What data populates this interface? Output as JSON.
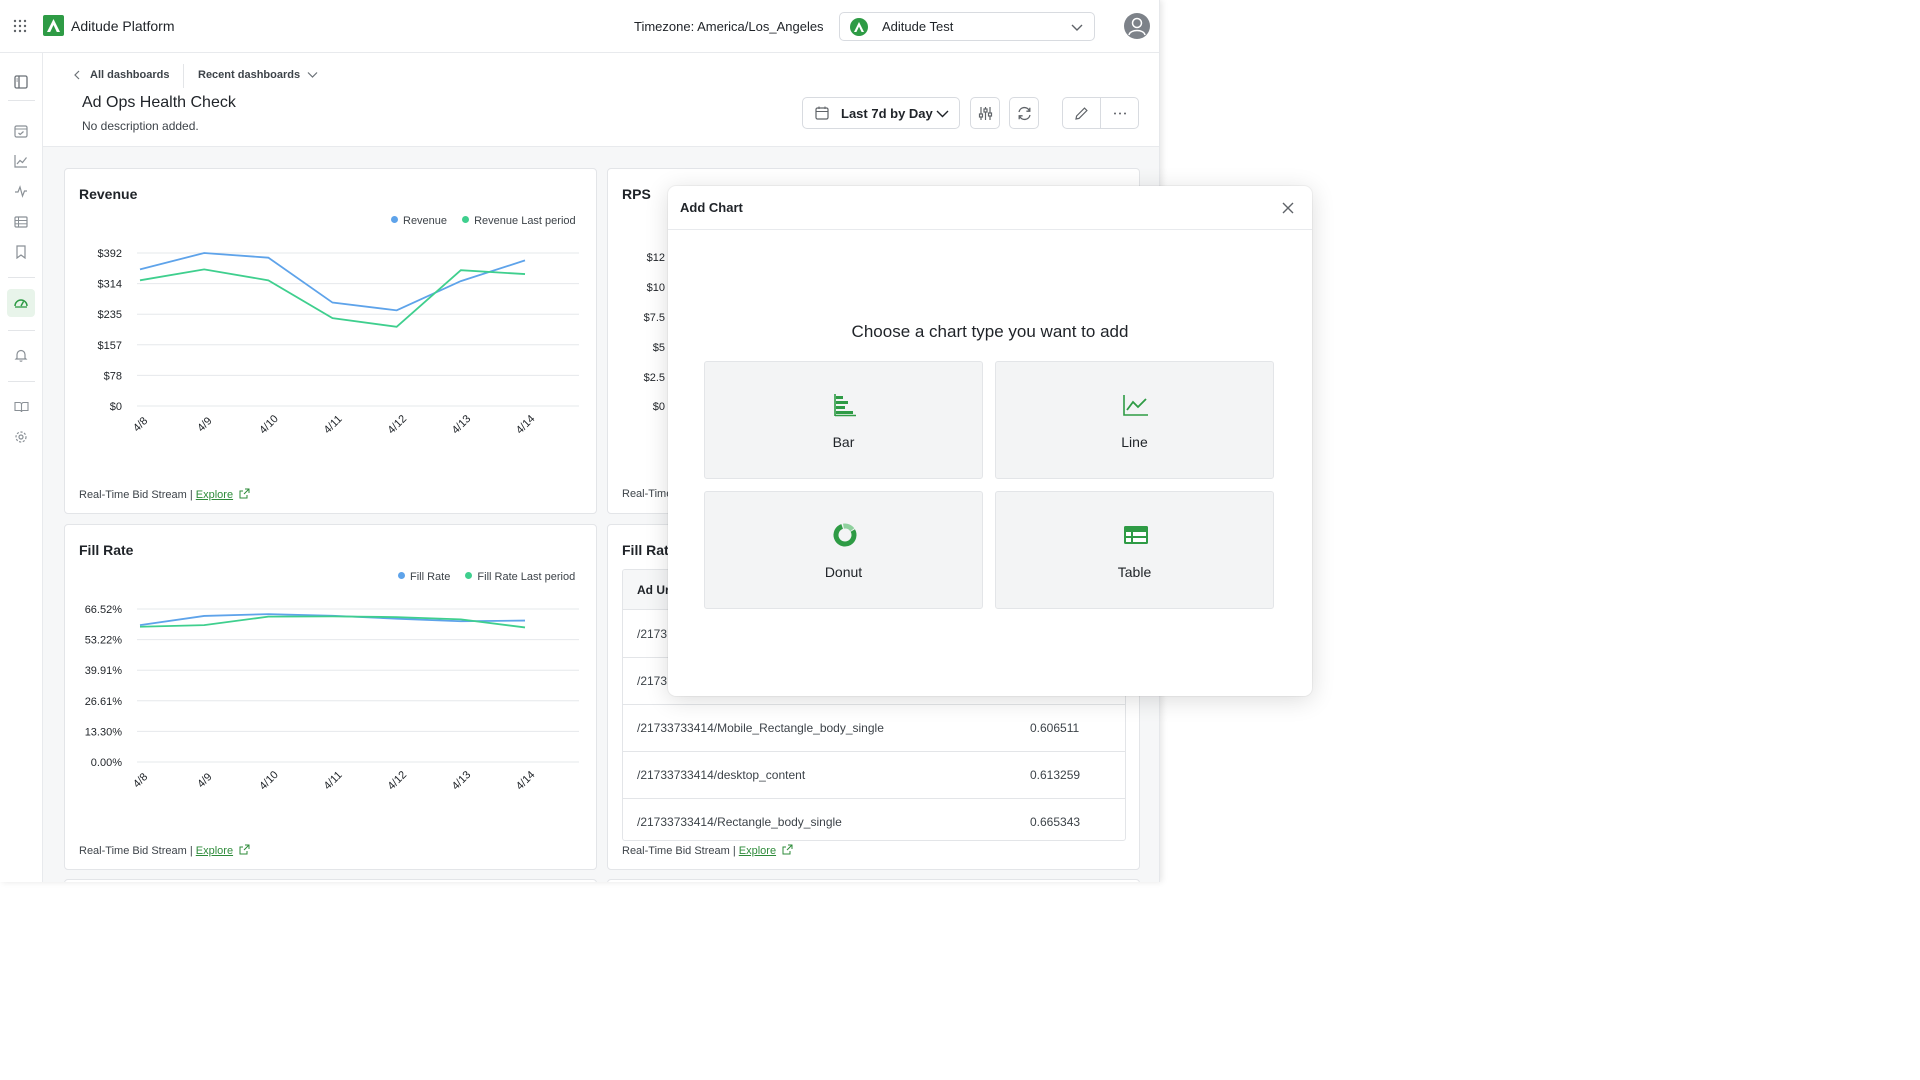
{
  "app": {
    "brand": "Aditude Platform",
    "timezone": "Timezone: America/Los_Angeles",
    "account": "Aditude Test",
    "accent": "#2e9b45"
  },
  "header": {
    "breadcrumb_all": "All dashboards",
    "breadcrumb_recent": "Recent dashboards",
    "title": "Ad Ops Health Check",
    "description": "No description added.",
    "date_range": "Last 7d by Day"
  },
  "revenue_card": {
    "title": "Revenue",
    "legend": [
      "Revenue",
      "Revenue Last period"
    ],
    "footer_source": "Real-Time Bid Stream |",
    "footer_link": "Explore"
  },
  "rps_card": {
    "title": "RPS",
    "yticks": [
      "$12",
      "$10",
      "$7.5",
      "$5",
      "$2.5",
      "$0"
    ],
    "footer_source": "Real-Time"
  },
  "fillrate_card": {
    "title": "Fill Rate",
    "legend": [
      "Fill Rate",
      "Fill Rate Last period"
    ],
    "footer_source": "Real-Time Bid Stream |",
    "footer_link": "Explore"
  },
  "fillrate_table_card": {
    "title": "Fill Rat",
    "column_header": "Ad Ur",
    "rows": [
      {
        "ad_unit": "/2173",
        "value": ""
      },
      {
        "ad_unit": "/2173",
        "value": ""
      },
      {
        "ad_unit": "/21733733414/Mobile_Rectangle_body_single",
        "value": "0.606511"
      },
      {
        "ad_unit": "/21733733414/desktop_content",
        "value": "0.613259"
      },
      {
        "ad_unit": "/21733733414/Rectangle_body_single",
        "value": "0.665343"
      }
    ],
    "footer_source": "Real-Time Bid Stream |",
    "footer_link": "Explore"
  },
  "modal": {
    "title": "Add Chart",
    "prompt": "Choose a chart type you want to add",
    "options": [
      "Bar",
      "Line",
      "Donut",
      "Table"
    ]
  },
  "chart_data": [
    {
      "type": "line",
      "title": "Revenue",
      "categories": [
        "4/8",
        "4/9",
        "4/10",
        "4/11",
        "4/12",
        "4/13",
        "4/14"
      ],
      "yticks": [
        "$392",
        "$314",
        "$235",
        "$157",
        "$78",
        "$0"
      ],
      "ylim": [
        0,
        392
      ],
      "series": [
        {
          "name": "Revenue",
          "color": "#5ea3ea",
          "values": [
            350,
            392,
            380,
            265,
            245,
            320,
            373
          ]
        },
        {
          "name": "Revenue Last period",
          "color": "#3fcf8e",
          "values": [
            322,
            350,
            322,
            225,
            203,
            348,
            338
          ]
        }
      ],
      "legend": "top-right",
      "grid": true
    },
    {
      "type": "line",
      "title": "Fill Rate",
      "categories": [
        "4/8",
        "4/9",
        "4/10",
        "4/11",
        "4/12",
        "4/13",
        "4/14"
      ],
      "yticks": [
        "66.52%",
        "53.22%",
        "39.91%",
        "26.61%",
        "13.30%",
        "0.00%"
      ],
      "ylim": [
        0,
        66.52
      ],
      "series": [
        {
          "name": "Fill Rate",
          "color": "#5ea3ea",
          "values": [
            59.5,
            63.5,
            64.3,
            63.6,
            62.3,
            61.2,
            61.5
          ]
        },
        {
          "name": "Fill Rate Last period",
          "color": "#3fcf8e",
          "values": [
            58.8,
            59.5,
            63.2,
            63.3,
            63.0,
            62.0,
            58.5
          ]
        }
      ],
      "legend": "top-right",
      "grid": true
    }
  ]
}
